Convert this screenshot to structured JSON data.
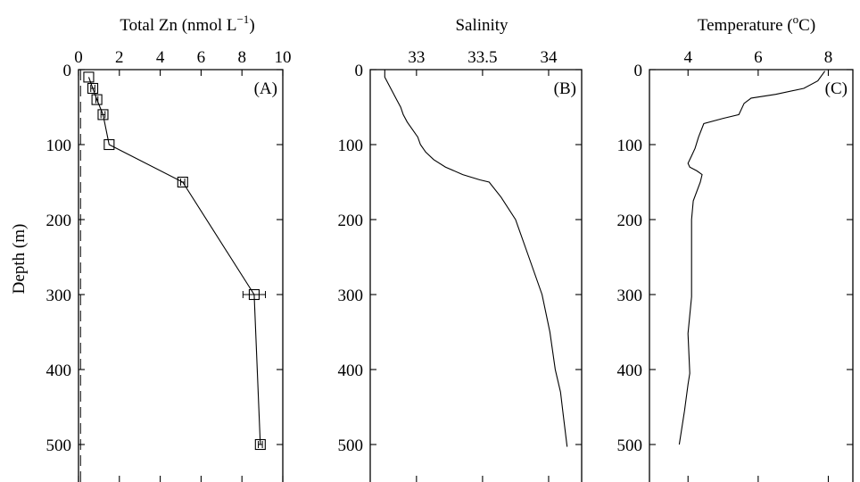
{
  "chart_data": [
    {
      "type": "line",
      "panel": "(A)",
      "title": "Total Zn (nmol L",
      "title_sup": "−1",
      "title_end": ")",
      "ylabel": "Depth (m)",
      "xlim": [
        0,
        10
      ],
      "ylim": [
        0,
        550
      ],
      "y_reversed": true,
      "x_ticks": [
        0,
        2,
        4,
        6,
        8,
        10
      ],
      "x_tick_labels": [
        "0",
        "2",
        "4",
        "6",
        "8",
        "10"
      ],
      "y_ticks": [
        0,
        100,
        200,
        300,
        400,
        500
      ],
      "y_tick_labels": [
        "0",
        "100",
        "200",
        "300",
        "400",
        "500"
      ],
      "series": [
        {
          "markers": "square",
          "points": [
            {
              "x": 0.5,
              "y": 10,
              "xerr": 0
            },
            {
              "x": 0.7,
              "y": 25,
              "xerr": 0.1
            },
            {
              "x": 0.9,
              "y": 40,
              "xerr": 0.05
            },
            {
              "x": 1.2,
              "y": 60,
              "xerr": 0.1
            },
            {
              "x": 1.5,
              "y": 100,
              "xerr": 0
            },
            {
              "x": 5.1,
              "y": 150,
              "xerr": 0.1
            },
            {
              "x": 8.6,
              "y": 300,
              "xerr": 0.55
            },
            {
              "x": 8.9,
              "y": 500,
              "xerr": 0.1
            }
          ]
        }
      ],
      "reference_line": {
        "style": "dashed",
        "x": 0.1
      }
    },
    {
      "type": "line",
      "panel": "(B)",
      "title": "Salinity",
      "xlim": [
        32.65,
        34.25
      ],
      "ylim": [
        0,
        550
      ],
      "y_reversed": true,
      "x_ticks": [
        33,
        33.5,
        34
      ],
      "x_tick_labels": [
        "33",
        "33.5",
        "34"
      ],
      "y_ticks": [
        0,
        100,
        200,
        300,
        400,
        500
      ],
      "y_tick_labels": [
        "0",
        "100",
        "200",
        "300",
        "400",
        "500"
      ],
      "series": [
        {
          "x": [
            32.76,
            32.76,
            32.79,
            32.82,
            32.85,
            32.88,
            32.9,
            32.93,
            32.97,
            33.01,
            33.03,
            33.07,
            33.13,
            33.22,
            33.35,
            33.48,
            33.55,
            33.64,
            33.75,
            33.85,
            33.95,
            34.01,
            34.05,
            34.09,
            34.11,
            34.14
          ],
          "y": [
            0,
            10,
            20,
            30,
            40,
            50,
            60,
            70,
            80,
            90,
            100,
            110,
            120,
            130,
            140,
            147,
            150,
            170,
            200,
            250,
            300,
            350,
            400,
            430,
            460,
            503
          ]
        }
      ]
    },
    {
      "type": "line",
      "panel": "(C)",
      "title": "Temperature (",
      "title_sup": "o",
      "title_end": "C)",
      "xlim": [
        2.9,
        8.7
      ],
      "ylim": [
        0,
        550
      ],
      "y_reversed": true,
      "x_ticks": [
        4,
        6,
        8
      ],
      "x_tick_labels": [
        "4",
        "6",
        "8"
      ],
      "y_ticks": [
        0,
        100,
        200,
        300,
        400,
        500
      ],
      "y_tick_labels": [
        "0",
        "100",
        "200",
        "300",
        "400",
        "500"
      ],
      "series": [
        {
          "x": [
            7.9,
            7.7,
            7.3,
            6.5,
            5.8,
            5.6,
            5.45,
            5.0,
            4.45,
            4.3,
            4.2,
            4.1,
            4.0,
            4.05,
            4.25,
            4.4,
            4.35,
            4.15,
            4.1,
            4.1,
            4.0,
            4.05,
            4.0,
            3.9,
            3.75
          ],
          "y": [
            2,
            15,
            25,
            33,
            38,
            45,
            60,
            65,
            72,
            90,
            105,
            115,
            125,
            130,
            135,
            140,
            150,
            175,
            200,
            303,
            352,
            405,
            420,
            455,
            500
          ]
        }
      ]
    }
  ]
}
